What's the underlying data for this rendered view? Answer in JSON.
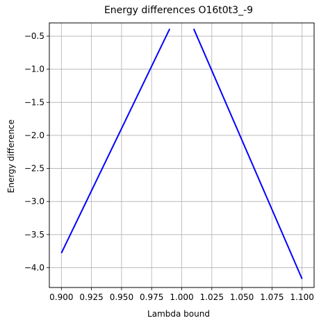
{
  "chart_data": {
    "type": "line",
    "title": "Energy differences O16t0t3_-9",
    "xlabel": "Lambda bound",
    "ylabel": "Energy difference",
    "xlim": [
      0.89,
      1.11
    ],
    "ylim": [
      -4.3,
      -0.3
    ],
    "grid": true,
    "xticks": [
      0.9,
      0.925,
      0.95,
      0.975,
      1.0,
      1.025,
      1.05,
      1.075,
      1.1
    ],
    "xtick_labels": [
      "0.900",
      "0.925",
      "0.950",
      "0.975",
      "1.000",
      "1.025",
      "1.050",
      "1.075",
      "1.100"
    ],
    "yticks": [
      -4.0,
      -3.5,
      -3.0,
      -2.5,
      -2.0,
      -1.5,
      -1.0,
      -0.5
    ],
    "ytick_labels": [
      "−4.0",
      "−3.5",
      "−3.0",
      "−2.5",
      "−2.0",
      "−1.5",
      "−1.0",
      "−0.5"
    ],
    "series": [
      {
        "color": "#0000ff",
        "x": [
          0.9,
          0.99
        ],
        "y": [
          -3.78,
          -0.39
        ]
      },
      {
        "color": "#0000ff",
        "x": [
          1.01,
          1.1
        ],
        "y": [
          -0.39,
          -4.17
        ]
      }
    ]
  }
}
